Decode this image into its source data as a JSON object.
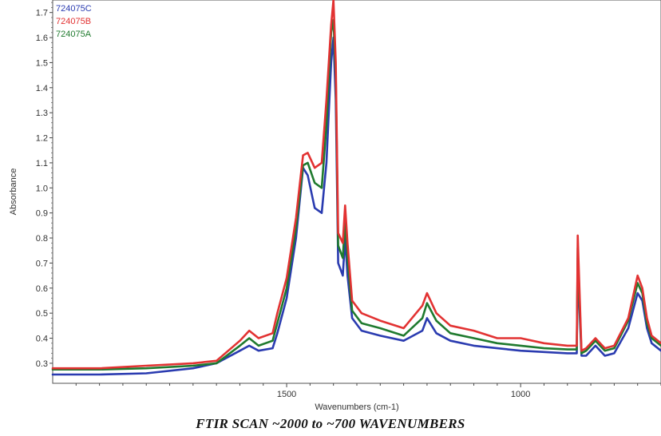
{
  "chart_data": {
    "type": "line",
    "title": "",
    "caption": "FTIR SCAN ~2000 to ~700  WAVENUMBERS",
    "xlabel": "Wavenumbers (cm-1)",
    "ylabel": "Absorbance",
    "xlim": [
      2000,
      700
    ],
    "ylim": [
      0.22,
      1.75
    ],
    "x_ticks": [
      1500,
      1000
    ],
    "y_ticks": [
      0.3,
      0.4,
      0.5,
      0.6,
      0.7,
      0.8,
      0.9,
      1.0,
      1.1,
      1.2,
      1.3,
      1.4,
      1.5,
      1.6,
      1.7
    ],
    "y_tick_labels": [
      "0.3",
      "0.4",
      "0.5",
      "0.6",
      "0.7",
      "0.8",
      "0.9",
      "1.0",
      "1.1",
      "1.2",
      "1.3",
      "1.4",
      "1.5",
      "1.6",
      "1.7"
    ],
    "legend_position": "top-left",
    "series": [
      {
        "name": "724075C",
        "color": "#2a3bb0",
        "x": [
          2000,
          1900,
          1800,
          1700,
          1650,
          1600,
          1580,
          1560,
          1530,
          1520,
          1500,
          1480,
          1465,
          1455,
          1440,
          1425,
          1415,
          1405,
          1400,
          1395,
          1390,
          1380,
          1375,
          1370,
          1360,
          1340,
          1300,
          1250,
          1210,
          1200,
          1180,
          1150,
          1100,
          1050,
          1000,
          950,
          900,
          880,
          878,
          876,
          870,
          860,
          840,
          820,
          800,
          770,
          750,
          740,
          730,
          720,
          700
        ],
        "y": [
          0.255,
          0.255,
          0.26,
          0.28,
          0.3,
          0.35,
          0.37,
          0.35,
          0.36,
          0.42,
          0.56,
          0.8,
          1.08,
          1.05,
          0.92,
          0.9,
          1.1,
          1.5,
          1.6,
          1.35,
          0.7,
          0.65,
          0.8,
          0.65,
          0.48,
          0.43,
          0.41,
          0.39,
          0.43,
          0.48,
          0.42,
          0.39,
          0.37,
          0.36,
          0.35,
          0.345,
          0.34,
          0.34,
          0.72,
          0.6,
          0.33,
          0.33,
          0.37,
          0.33,
          0.34,
          0.44,
          0.58,
          0.55,
          0.44,
          0.38,
          0.35
        ]
      },
      {
        "name": "724075B",
        "color": "#e23232",
        "x": [
          2000,
          1900,
          1800,
          1700,
          1650,
          1600,
          1580,
          1560,
          1530,
          1520,
          1500,
          1480,
          1465,
          1455,
          1440,
          1425,
          1415,
          1405,
          1400,
          1395,
          1390,
          1380,
          1375,
          1370,
          1360,
          1340,
          1300,
          1250,
          1210,
          1200,
          1180,
          1150,
          1100,
          1050,
          1000,
          950,
          900,
          880,
          878,
          876,
          870,
          860,
          840,
          820,
          800,
          770,
          750,
          740,
          730,
          720,
          700
        ],
        "y": [
          0.28,
          0.28,
          0.29,
          0.3,
          0.31,
          0.39,
          0.43,
          0.4,
          0.42,
          0.5,
          0.64,
          0.88,
          1.13,
          1.14,
          1.08,
          1.1,
          1.35,
          1.65,
          1.75,
          1.5,
          0.82,
          0.78,
          0.93,
          0.78,
          0.55,
          0.5,
          0.47,
          0.44,
          0.53,
          0.58,
          0.5,
          0.45,
          0.43,
          0.4,
          0.4,
          0.38,
          0.37,
          0.37,
          0.81,
          0.7,
          0.35,
          0.36,
          0.4,
          0.36,
          0.37,
          0.48,
          0.65,
          0.6,
          0.48,
          0.41,
          0.38
        ]
      },
      {
        "name": "724075A",
        "color": "#1f7a2e",
        "x": [
          2000,
          1900,
          1800,
          1700,
          1650,
          1600,
          1580,
          1560,
          1530,
          1520,
          1500,
          1480,
          1465,
          1455,
          1440,
          1425,
          1415,
          1405,
          1400,
          1395,
          1390,
          1380,
          1375,
          1370,
          1360,
          1340,
          1300,
          1250,
          1210,
          1200,
          1180,
          1150,
          1100,
          1050,
          1000,
          950,
          900,
          880,
          878,
          876,
          870,
          860,
          840,
          820,
          800,
          770,
          750,
          740,
          730,
          720,
          700
        ],
        "y": [
          0.275,
          0.275,
          0.28,
          0.29,
          0.3,
          0.37,
          0.4,
          0.37,
          0.39,
          0.46,
          0.6,
          0.84,
          1.09,
          1.1,
          1.02,
          1.0,
          1.25,
          1.62,
          1.67,
          1.45,
          0.77,
          0.72,
          0.87,
          0.72,
          0.51,
          0.46,
          0.44,
          0.41,
          0.48,
          0.54,
          0.47,
          0.42,
          0.4,
          0.38,
          0.37,
          0.36,
          0.355,
          0.355,
          0.76,
          0.65,
          0.34,
          0.35,
          0.39,
          0.35,
          0.36,
          0.47,
          0.62,
          0.58,
          0.46,
          0.4,
          0.37
        ]
      }
    ]
  }
}
